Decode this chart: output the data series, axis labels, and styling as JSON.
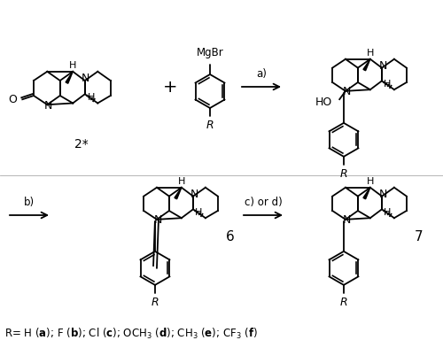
{
  "background_color": "#ffffff",
  "line_color": "#000000",
  "text_color": "#000000",
  "arrow_a_label": "a)",
  "arrow_b_label": "b)",
  "arrow_cd_label": "c) or d)",
  "compound_2_label": "2*",
  "compound_6_label": "6",
  "compound_7_label": "7",
  "grignard_label": "MgBr",
  "ho_label": "HO",
  "r_label": "R",
  "n_label": "N",
  "h_label": "H",
  "o_label": "O"
}
